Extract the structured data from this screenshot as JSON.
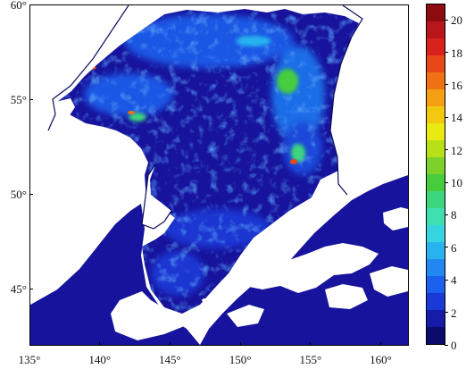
{
  "colors": {
    "ocean_base": "#17139c",
    "land": "#ffffff",
    "coast": "#0b0b5a",
    "colorbar": [
      "#0b0b6b",
      "#161ca8",
      "#1a3ad8",
      "#1c60ee",
      "#2088f0",
      "#28b2ee",
      "#35d4e0",
      "#3fe0b0",
      "#3cd67e",
      "#47cc3e",
      "#7cd12a",
      "#b8e018",
      "#e8ea12",
      "#f2c810",
      "#f4a012",
      "#f07014",
      "#e84818",
      "#d8221c",
      "#b8161a",
      "#8c0c12"
    ]
  },
  "axes": {
    "lon_labels": [
      "135°",
      "140°",
      "145°",
      "150°",
      "155°",
      "160°"
    ],
    "lat_labels": [
      "60°",
      "55°",
      "50°",
      "45°"
    ],
    "lon_range": [
      135,
      162
    ],
    "lat_range": [
      42,
      60
    ]
  },
  "colorbar": {
    "labels": [
      "0",
      "2",
      "4",
      "6",
      "8",
      "10",
      "12",
      "14",
      "16",
      "18",
      "20"
    ],
    "range": [
      0,
      21
    ]
  }
}
